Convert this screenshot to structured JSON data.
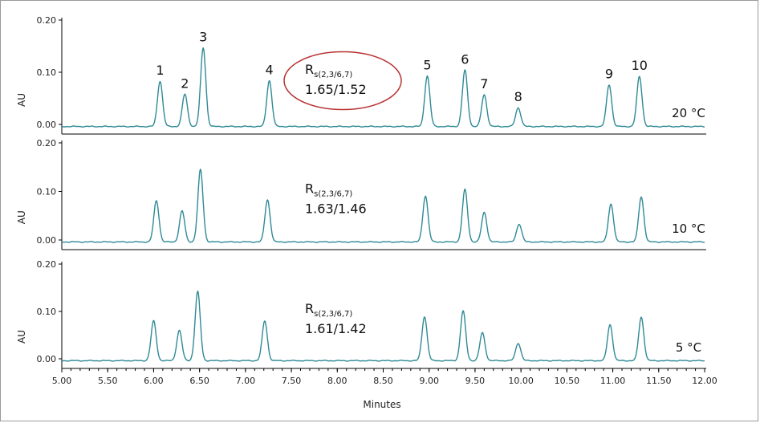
{
  "chart_data": {
    "type": "line",
    "xlabel": "Minutes",
    "ylabel": "AU",
    "xlim": [
      5.0,
      12.0
    ],
    "x_ticks": [
      "5.00",
      "5.50",
      "6.00",
      "6.50",
      "7.00",
      "7.50",
      "8.00",
      "8.50",
      "9.00",
      "9.50",
      "10.00",
      "10.50",
      "11.00",
      "11.50",
      "12.00"
    ],
    "y_ticks": [
      "0.00",
      "0.10",
      "0.20"
    ],
    "ylim": [
      -0.01,
      0.2
    ],
    "grid": false,
    "line_color": "#2f8a96",
    "highlight_color": "#b83232",
    "panels": [
      {
        "temperature": "20 °C",
        "rs_symbol": "R",
        "rs_subscript": "s(2,3/6,7)",
        "rs_value": "1.65/1.52",
        "highlighted": true,
        "show_peak_labels": true,
        "peaks": [
          {
            "label": "1",
            "x": 6.07,
            "y": 0.083
          },
          {
            "label": "2",
            "x": 6.34,
            "y": 0.058
          },
          {
            "label": "3",
            "x": 6.54,
            "y": 0.147
          },
          {
            "label": "4",
            "x": 7.26,
            "y": 0.084
          },
          {
            "label": "5",
            "x": 8.98,
            "y": 0.093
          },
          {
            "label": "6",
            "x": 9.39,
            "y": 0.104
          },
          {
            "label": "7",
            "x": 9.6,
            "y": 0.057
          },
          {
            "label": "8",
            "x": 9.97,
            "y": 0.032
          },
          {
            "label": "9",
            "x": 10.96,
            "y": 0.076
          },
          {
            "label": "10",
            "x": 11.29,
            "y": 0.092
          }
        ]
      },
      {
        "temperature": "10 °C",
        "rs_symbol": "R",
        "rs_subscript": "s(2,3/6,7)",
        "rs_value": "1.63/1.46",
        "highlighted": false,
        "show_peak_labels": false,
        "peaks": [
          {
            "label": "1",
            "x": 6.03,
            "y": 0.081
          },
          {
            "label": "2",
            "x": 6.31,
            "y": 0.06
          },
          {
            "label": "3",
            "x": 6.51,
            "y": 0.145
          },
          {
            "label": "4",
            "x": 7.24,
            "y": 0.083
          },
          {
            "label": "5",
            "x": 8.96,
            "y": 0.091
          },
          {
            "label": "6",
            "x": 9.39,
            "y": 0.104
          },
          {
            "label": "7",
            "x": 9.6,
            "y": 0.057
          },
          {
            "label": "8",
            "x": 9.98,
            "y": 0.033
          },
          {
            "label": "9",
            "x": 10.98,
            "y": 0.074
          },
          {
            "label": "10",
            "x": 11.31,
            "y": 0.089
          }
        ]
      },
      {
        "temperature": "5 °C",
        "rs_symbol": "R",
        "rs_subscript": "s(2,3/6,7)",
        "rs_value": "1.61/1.42",
        "highlighted": false,
        "show_peak_labels": false,
        "peaks": [
          {
            "label": "1",
            "x": 6.0,
            "y": 0.08
          },
          {
            "label": "2",
            "x": 6.28,
            "y": 0.06
          },
          {
            "label": "3",
            "x": 6.48,
            "y": 0.142
          },
          {
            "label": "4",
            "x": 7.21,
            "y": 0.08
          },
          {
            "label": "5",
            "x": 8.95,
            "y": 0.089
          },
          {
            "label": "6",
            "x": 9.37,
            "y": 0.101
          },
          {
            "label": "7",
            "x": 9.58,
            "y": 0.055
          },
          {
            "label": "8",
            "x": 9.97,
            "y": 0.033
          },
          {
            "label": "9",
            "x": 10.97,
            "y": 0.072
          },
          {
            "label": "10",
            "x": 11.31,
            "y": 0.088
          }
        ]
      }
    ]
  }
}
